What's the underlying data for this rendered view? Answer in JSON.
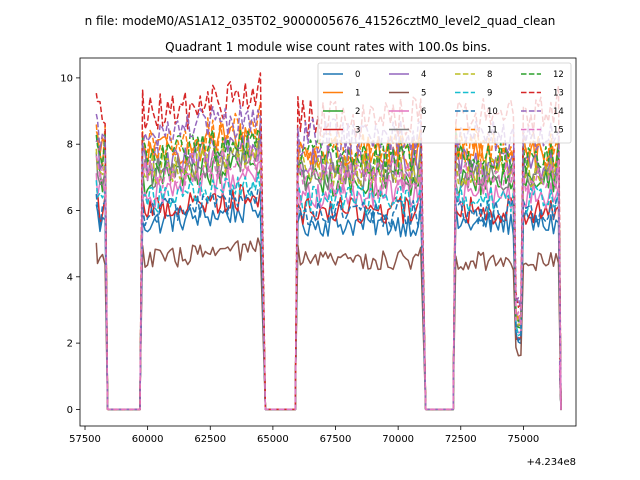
{
  "chart_data": {
    "type": "line",
    "suptitle": "n file: modeM0/AS1A12_035T02_9000005676_41526cztM0_level2_quad_clean",
    "title": "Quadrant 1 module wise count rates with 100.0s bins.",
    "xlabel": "",
    "ylabel": "",
    "x_offset_label": "+4.234e8",
    "xlim": [
      57300,
      77100
    ],
    "ylim": [
      -0.5,
      10.6
    ],
    "x_ticks": [
      {
        "value": 57500,
        "label": "57500"
      },
      {
        "value": 60000,
        "label": "60000"
      },
      {
        "value": 62500,
        "label": "62500"
      },
      {
        "value": 65000,
        "label": "65000"
      },
      {
        "value": 67500,
        "label": "67500"
      },
      {
        "value": 70000,
        "label": "70000"
      },
      {
        "value": 72500,
        "label": "72500"
      },
      {
        "value": 75000,
        "label": "75000"
      }
    ],
    "y_ticks": [
      {
        "value": 0,
        "label": "0"
      },
      {
        "value": 2,
        "label": "2"
      },
      {
        "value": 4,
        "label": "4"
      },
      {
        "value": 6,
        "label": "6"
      },
      {
        "value": 8,
        "label": "8"
      },
      {
        "value": 10,
        "label": "10"
      }
    ],
    "legend_position": "top-right",
    "segments": [
      {
        "start": 58000,
        "end": 58300,
        "fall_to": 58400
      },
      {
        "start": 59800,
        "end": 64500,
        "rise_from": 59700,
        "fall_to": 64700
      },
      {
        "start": 66000,
        "end": 70900,
        "rise_from": 65900,
        "fall_to": 71100
      },
      {
        "start": 72300,
        "end": 76400,
        "rise_from": 72200,
        "fall_to": 76500
      }
    ],
    "gaps": [
      [
        58400,
        59700
      ],
      [
        64700,
        65900
      ],
      [
        71100,
        72200
      ]
    ],
    "dip": {
      "x": 74800,
      "depth": 0.35
    },
    "series": [
      {
        "name": "0",
        "color": "#1f77b4",
        "dashed": false,
        "level": 5.6
      },
      {
        "name": "1",
        "color": "#ff7f0e",
        "dashed": false,
        "level": 7.7
      },
      {
        "name": "2",
        "color": "#2ca02c",
        "dashed": false,
        "level": 6.9
      },
      {
        "name": "3",
        "color": "#d62728",
        "dashed": false,
        "level": 6.0
      },
      {
        "name": "4",
        "color": "#9467bd",
        "dashed": false,
        "level": 7.4
      },
      {
        "name": "5",
        "color": "#8c564b",
        "dashed": false,
        "level": 4.5
      },
      {
        "name": "6",
        "color": "#e377c2",
        "dashed": false,
        "level": 6.5
      },
      {
        "name": "7",
        "color": "#7f7f7f",
        "dashed": false,
        "level": 7.1
      },
      {
        "name": "8",
        "color": "#bcbd22",
        "dashed": true,
        "level": 7.2
      },
      {
        "name": "9",
        "color": "#17becf",
        "dashed": true,
        "level": 6.3
      },
      {
        "name": "10",
        "color": "#1f77b4",
        "dashed": true,
        "level": 5.9
      },
      {
        "name": "11",
        "color": "#ff7f0e",
        "dashed": true,
        "level": 7.9
      },
      {
        "name": "12",
        "color": "#2ca02c",
        "dashed": true,
        "level": 7.6
      },
      {
        "name": "13",
        "color": "#d62728",
        "dashed": true,
        "level": 8.8
      },
      {
        "name": "14",
        "color": "#9467bd",
        "dashed": true,
        "level": 8.2
      },
      {
        "name": "15",
        "color": "#e377c2",
        "dashed": true,
        "level": 7.0
      }
    ]
  }
}
